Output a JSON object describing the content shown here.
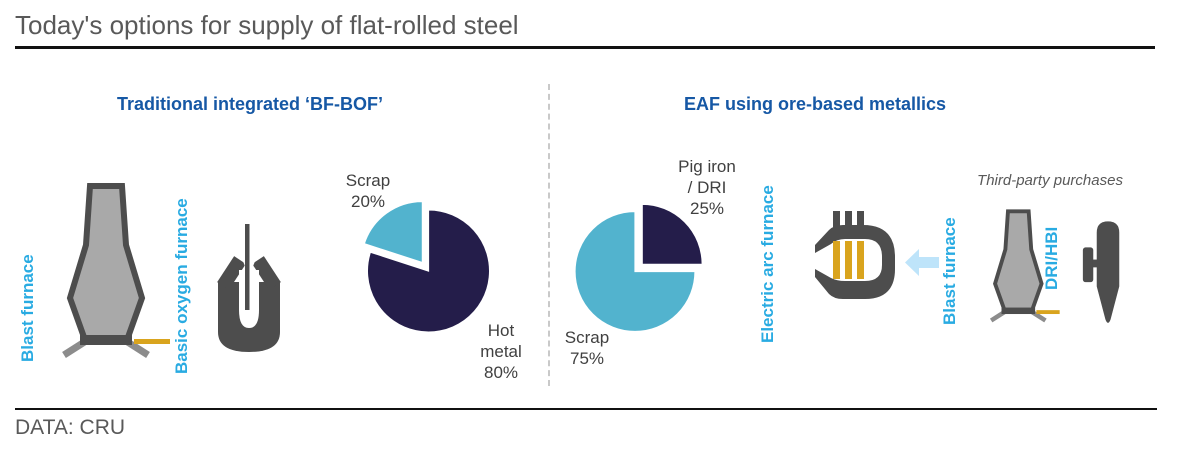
{
  "header": {
    "title": "Today's options for supply of flat-rolled steel",
    "source": "DATA: CRU"
  },
  "panels": {
    "bf_bof": {
      "heading": "Traditional integrated ‘BF-BOF’",
      "blast_furnace_label": "Blast furnace",
      "bof_label": "Basic oxygen furnace"
    },
    "eaf": {
      "heading": "EAF using ore-based metallics",
      "eaf_label": "Electric arc furnace",
      "third_party_label": "Third-party purchases",
      "blast_furnace_label": "Blast furnace",
      "dri_label": "DRI/HBI"
    }
  },
  "icons": {
    "blast_furnace": "blast-furnace-icon",
    "basic_oxygen_furnace": "basic-oxygen-furnace-icon",
    "electric_arc_furnace": "electric-arc-furnace-icon",
    "feed_arrow": "arrow-left-icon",
    "dri_hbi": "dri-hbi-icon"
  },
  "colors": {
    "heading_blue": "#1658A5",
    "label_cyan": "#29ABE2",
    "pie_cyan": "#52B3CE",
    "pie_navy": "#241D4A",
    "icon_dark": "#4D4D4D",
    "vessel_fill": "#A9A9A9",
    "gold": "#D9A41E",
    "arrow_blue": "#BEE4FA",
    "text_gray": "#595959"
  },
  "chart_data": [
    {
      "type": "pie",
      "panel": "Traditional integrated BF-BOF",
      "unit": "%",
      "legend_position": "callouts",
      "slices": [
        {
          "label": "Scrap",
          "value": 20,
          "color": "#52B3CE",
          "exploded": true,
          "start_deg": 90,
          "end_deg": 162,
          "callout": "Scrap\n20%"
        },
        {
          "label": "Hot metal",
          "value": 80,
          "color": "#241D4A",
          "exploded": false,
          "start_deg": 162,
          "end_deg": 450,
          "callout": "Hot\nmetal\n80%"
        }
      ]
    },
    {
      "type": "pie",
      "panel": "EAF using ore-based metallics",
      "unit": "%",
      "legend_position": "callouts",
      "slices": [
        {
          "label": "Pig iron / DRI",
          "value": 25,
          "color": "#241D4A",
          "exploded": true,
          "start_deg": 0,
          "end_deg": 90,
          "callout": "Pig iron\n/ DRI\n25%"
        },
        {
          "label": "Scrap",
          "value": 75,
          "color": "#52B3CE",
          "exploded": false,
          "start_deg": 90,
          "end_deg": 360,
          "callout": "Scrap\n75%"
        }
      ]
    }
  ]
}
